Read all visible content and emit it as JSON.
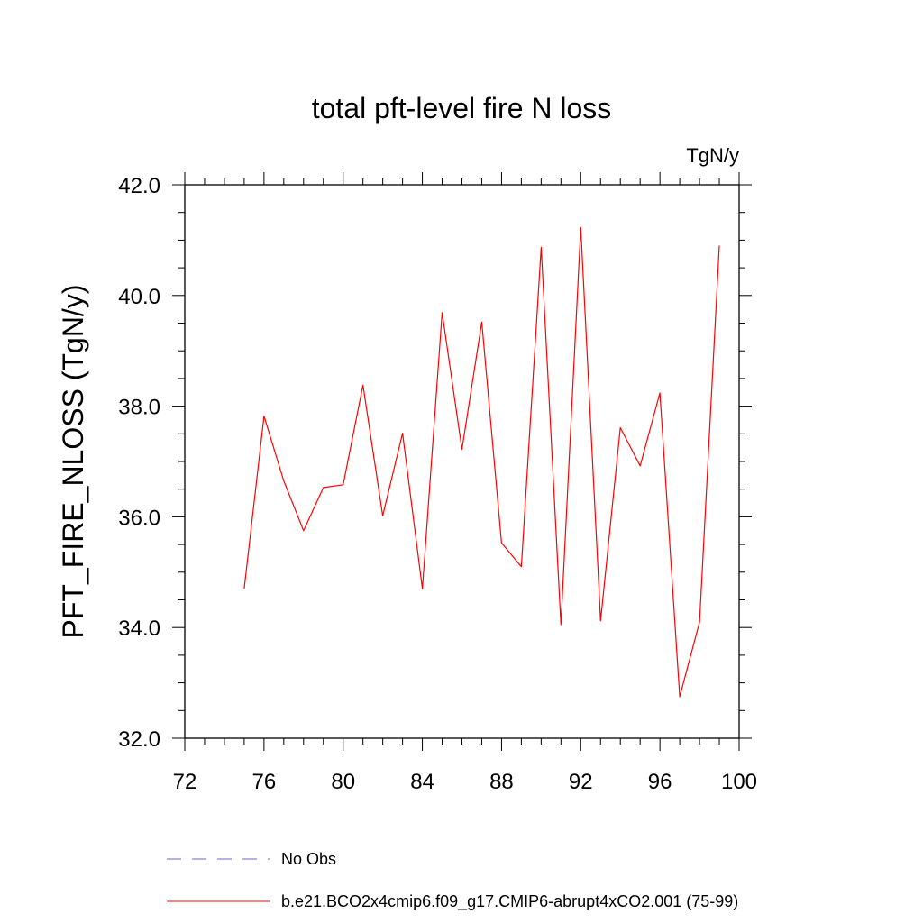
{
  "chart_data": {
    "type": "line",
    "title": "total pft-level fire N loss",
    "units_label": "TgN/y",
    "xlabel": "",
    "ylabel": "PFT_FIRE_NLOSS  (TgN/y)",
    "xlim": [
      72,
      100
    ],
    "ylim": [
      32.0,
      42.0
    ],
    "xticks": [
      72,
      76,
      80,
      84,
      88,
      92,
      96,
      100
    ],
    "xtick_labels": [
      "72",
      "76",
      "80",
      "84",
      "88",
      "92",
      "96",
      "100"
    ],
    "yticks": [
      32.0,
      34.0,
      36.0,
      38.0,
      40.0,
      42.0
    ],
    "ytick_labels": [
      "32.0",
      "34.0",
      "36.0",
      "38.0",
      "40.0",
      "42.0"
    ],
    "grid": false,
    "legend_position": "bottom",
    "series": [
      {
        "name": "b.e21.BCO2x4cmip6.f09_g17.CMIP6-abrupt4xCO2.001 (75-99)",
        "color": "#ff0000",
        "style": "solid",
        "x": [
          75,
          76,
          77,
          78,
          79,
          80,
          81,
          82,
          83,
          84,
          85,
          86,
          87,
          88,
          89,
          90,
          91,
          92,
          93,
          94,
          95,
          96,
          97,
          98,
          99
        ],
        "y": [
          34.7,
          37.82,
          36.65,
          35.75,
          36.53,
          36.58,
          38.38,
          36.02,
          37.51,
          34.7,
          39.69,
          37.22,
          39.52,
          35.53,
          35.1,
          40.87,
          34.05,
          41.23,
          34.12,
          37.61,
          36.92,
          38.24,
          32.75,
          34.1,
          40.9
        ]
      }
    ],
    "legend": [
      {
        "label": "No Obs",
        "color": "#6666cc",
        "style": "dashed"
      },
      {
        "label": "b.e21.BCO2x4cmip6.f09_g17.CMIP6-abrupt4xCO2.001 (75-99)",
        "color": "#ff0000",
        "style": "solid"
      }
    ]
  }
}
